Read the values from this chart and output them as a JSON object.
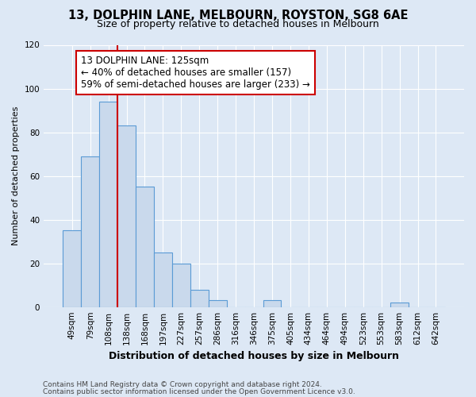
{
  "title": "13, DOLPHIN LANE, MELBOURN, ROYSTON, SG8 6AE",
  "subtitle": "Size of property relative to detached houses in Melbourn",
  "xlabel": "Distribution of detached houses by size in Melbourn",
  "ylabel": "Number of detached properties",
  "bar_labels": [
    "49sqm",
    "79sqm",
    "108sqm",
    "138sqm",
    "168sqm",
    "197sqm",
    "227sqm",
    "257sqm",
    "286sqm",
    "316sqm",
    "346sqm",
    "375sqm",
    "405sqm",
    "434sqm",
    "464sqm",
    "494sqm",
    "523sqm",
    "553sqm",
    "583sqm",
    "612sqm",
    "642sqm"
  ],
  "bar_values": [
    35,
    69,
    94,
    83,
    55,
    25,
    20,
    8,
    3,
    0,
    0,
    3,
    0,
    0,
    0,
    0,
    0,
    0,
    2,
    0,
    0
  ],
  "bar_color": "#c9d9ec",
  "bar_edge_color": "#5b9bd5",
  "background_color": "#dde8f5",
  "plot_bg_color": "#dde8f5",
  "grid_color": "#ffffff",
  "ylim": [
    0,
    120
  ],
  "yticks": [
    0,
    20,
    40,
    60,
    80,
    100,
    120
  ],
  "annotation_box_text": "13 DOLPHIN LANE: 125sqm\n← 40% of detached houses are smaller (157)\n59% of semi-detached houses are larger (233) →",
  "annotation_box_color": "#ffffff",
  "annotation_box_edge_color": "#cc0000",
  "vline_x_index": 2,
  "vline_color": "#cc0000",
  "footer_line1": "Contains HM Land Registry data © Crown copyright and database right 2024.",
  "footer_line2": "Contains public sector information licensed under the Open Government Licence v3.0.",
  "title_fontsize": 10.5,
  "subtitle_fontsize": 9,
  "xlabel_fontsize": 9,
  "ylabel_fontsize": 8,
  "tick_fontsize": 7.5,
  "annotation_fontsize": 8.5,
  "footer_fontsize": 6.5
}
